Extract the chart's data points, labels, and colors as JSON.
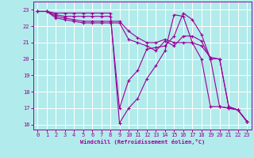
{
  "xlabel": "Windchill (Refroidissement éolien,°C)",
  "bg_color": "#b2ebeb",
  "grid_color": "#ffffff",
  "line_color": "#990099",
  "xlim": [
    -0.5,
    23.5
  ],
  "ylim": [
    15.7,
    23.5
  ],
  "yticks": [
    16,
    17,
    18,
    19,
    20,
    21,
    22,
    23
  ],
  "xticks": [
    0,
    1,
    2,
    3,
    4,
    5,
    6,
    7,
    8,
    9,
    10,
    11,
    12,
    13,
    14,
    15,
    16,
    17,
    18,
    19,
    20,
    21,
    22,
    23
  ],
  "lines": [
    {
      "x": [
        0,
        1,
        2,
        3,
        4,
        5,
        6,
        7,
        8,
        9,
        10,
        11,
        12,
        13,
        14,
        15,
        16,
        17,
        18,
        19,
        20,
        21,
        22,
        23
      ],
      "y": [
        22.9,
        22.9,
        22.8,
        22.8,
        22.8,
        22.8,
        22.8,
        22.8,
        22.8,
        16.1,
        17.0,
        17.6,
        18.8,
        19.6,
        20.5,
        22.7,
        22.6,
        21.0,
        20.0,
        17.1,
        17.1,
        17.0,
        16.9,
        16.2
      ]
    },
    {
      "x": [
        0,
        1,
        2,
        3,
        4,
        5,
        6,
        7,
        8,
        9,
        10,
        11,
        12,
        13,
        14,
        15,
        16,
        17,
        18,
        19,
        20,
        21,
        22,
        23
      ],
      "y": [
        22.9,
        22.9,
        22.7,
        22.6,
        22.6,
        22.6,
        22.6,
        22.6,
        22.6,
        17.0,
        18.7,
        19.3,
        20.6,
        20.7,
        20.8,
        21.4,
        22.8,
        22.4,
        21.5,
        20.0,
        17.1,
        17.0,
        16.9,
        16.2
      ]
    },
    {
      "x": [
        0,
        1,
        2,
        3,
        4,
        5,
        6,
        7,
        8,
        9,
        10,
        11,
        12,
        13,
        14,
        15,
        16,
        17,
        18,
        19,
        20,
        21,
        22,
        23
      ],
      "y": [
        22.9,
        22.9,
        22.6,
        22.5,
        22.4,
        22.3,
        22.3,
        22.3,
        22.3,
        22.3,
        21.7,
        21.3,
        21.0,
        21.0,
        21.2,
        21.0,
        21.0,
        21.0,
        20.8,
        20.1,
        20.0,
        17.1,
        16.9,
        16.2
      ]
    },
    {
      "x": [
        0,
        1,
        2,
        3,
        4,
        5,
        6,
        7,
        8,
        9,
        10,
        11,
        12,
        13,
        14,
        15,
        16,
        17,
        18,
        19,
        20,
        21,
        22,
        23
      ],
      "y": [
        22.9,
        22.9,
        22.5,
        22.4,
        22.3,
        22.2,
        22.2,
        22.2,
        22.2,
        22.2,
        21.2,
        21.0,
        20.8,
        20.5,
        21.1,
        20.8,
        21.4,
        21.4,
        21.1,
        20.0,
        20.0,
        17.1,
        16.9,
        16.2
      ]
    }
  ]
}
